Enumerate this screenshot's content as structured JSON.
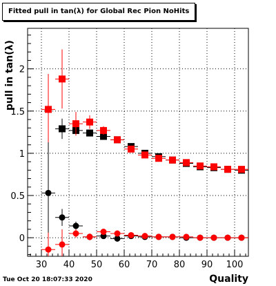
{
  "title": "Fitted pull in tan(λ) for Global Rec Pion NoHits",
  "datestamp": "Tue Oct 20 18:07:33 2020",
  "chart_data": {
    "type": "scatter",
    "title": "Fitted pull in tan(λ) for Global Rec Pion NoHits",
    "xlabel": "Quality",
    "ylabel": "pull in tan(λ)",
    "xlim": [
      25,
      105
    ],
    "ylim": [
      -0.22,
      2.48
    ],
    "xticks": [
      30,
      40,
      50,
      60,
      70,
      80,
      90,
      100
    ],
    "yticks": [
      0,
      0.5,
      1,
      1.5,
      2
    ],
    "ytick_labels": [
      "0",
      "0.5",
      "1",
      "1.5",
      "2"
    ],
    "grid": true,
    "x_half_width": 2.5,
    "series": [
      {
        "marker": "square",
        "color": "#000000",
        "x": [
          37.5,
          42.5,
          47.5,
          52.5,
          57.5,
          62.5,
          67.5,
          72.5,
          77.5,
          82.5,
          87.5,
          92.5,
          97.5,
          102.5
        ],
        "y": [
          1.29,
          1.27,
          1.24,
          1.2,
          1.16,
          1.08,
          1.0,
          0.96,
          0.92,
          0.88,
          0.84,
          0.83,
          0.81,
          0.8
        ],
        "err": [
          0.12,
          0.06,
          0.04,
          0.03,
          0.02,
          0.02,
          0.02,
          0.02,
          0.02,
          0.02,
          0.02,
          0.02,
          0.02,
          0.02
        ]
      },
      {
        "marker": "square",
        "color": "#ff0000",
        "x": [
          32.5,
          37.5,
          42.5,
          47.5,
          52.5,
          57.5,
          62.5,
          67.5,
          72.5,
          77.5,
          82.5,
          87.5,
          92.5,
          97.5,
          102.5
        ],
        "y": [
          1.52,
          1.88,
          1.35,
          1.37,
          1.27,
          1.16,
          1.05,
          0.98,
          0.94,
          0.92,
          0.89,
          0.85,
          0.84,
          0.81,
          0.81
        ],
        "err": [
          0.42,
          0.35,
          0.14,
          0.08,
          0.05,
          0.03,
          0.02,
          0.02,
          0.02,
          0.02,
          0.02,
          0.02,
          0.02,
          0.02,
          0.02
        ]
      },
      {
        "marker": "circle",
        "color": "#000000",
        "x": [
          32.5,
          37.5,
          42.5,
          47.5,
          52.5,
          57.5,
          62.5,
          67.5,
          72.5,
          77.5,
          82.5,
          87.5,
          92.5,
          97.5,
          102.5
        ],
        "y": [
          0.53,
          0.24,
          0.14,
          0.01,
          0.02,
          -0.01,
          0.02,
          0.01,
          0.01,
          0.01,
          0.0,
          0.0,
          0.0,
          0.0,
          0.0
        ],
        "err": [
          0.6,
          0.1,
          0.05,
          0.03,
          0.02,
          0.02,
          0.01,
          0.01,
          0.01,
          0.01,
          0.01,
          0.01,
          0.01,
          0.01,
          0.01
        ]
      },
      {
        "marker": "circle",
        "color": "#ff0000",
        "x": [
          32.5,
          37.5,
          42.5,
          47.5,
          52.5,
          57.5,
          62.5,
          67.5,
          72.5,
          77.5,
          82.5,
          87.5,
          92.5,
          97.5,
          102.5
        ],
        "y": [
          -0.14,
          -0.08,
          0.05,
          0.01,
          0.07,
          0.05,
          0.03,
          0.02,
          0.01,
          0.01,
          0.01,
          0.0,
          0.0,
          0.0,
          0.0
        ],
        "err": [
          0.2,
          0.18,
          0.05,
          0.04,
          0.03,
          0.02,
          0.02,
          0.01,
          0.01,
          0.01,
          0.01,
          0.01,
          0.01,
          0.01,
          0.01
        ]
      }
    ]
  }
}
